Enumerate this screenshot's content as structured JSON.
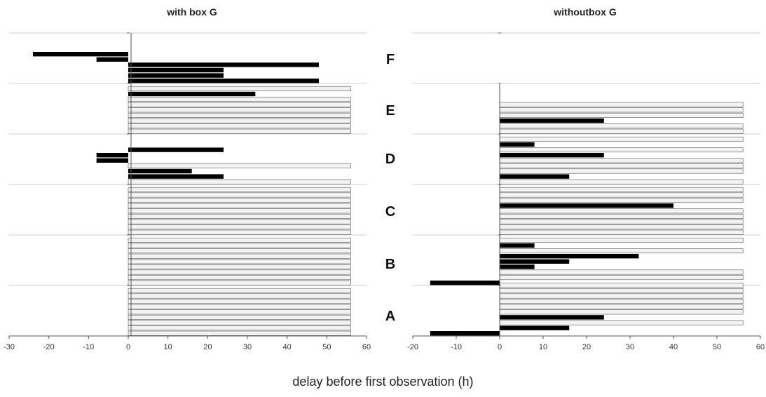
{
  "chart_data": {
    "type": "bar",
    "orientation": "horizontal",
    "xlabel": "delay before first observation (h)",
    "group_labels": [
      "F",
      "E",
      "D",
      "C",
      "B",
      "A"
    ],
    "colors": {
      "observed": "#000000",
      "not_observed": "#f2f2f2",
      "not_observed_stroke": "#555555",
      "separator": "#cccccc",
      "axis": "#555555"
    },
    "panels": [
      {
        "title": "with box G",
        "xlim": [
          -30,
          60
        ],
        "xticks": [
          -30,
          -20,
          -10,
          0,
          10,
          20,
          30,
          40,
          50,
          60
        ],
        "grid": false,
        "bars": [
          {
            "group": "F",
            "value": -24,
            "observed": true
          },
          {
            "group": "F",
            "value": -8,
            "observed": true
          },
          {
            "group": "F",
            "value": 48,
            "observed": true
          },
          {
            "group": "F",
            "value": 24,
            "observed": true
          },
          {
            "group": "F",
            "value": 24,
            "observed": true
          },
          {
            "group": "F",
            "value": 48,
            "observed": true
          },
          {
            "group": "E",
            "value": 56,
            "observed": false
          },
          {
            "group": "E",
            "value": 32,
            "observed": true
          },
          {
            "group": "E",
            "value": 56,
            "observed": false
          },
          {
            "group": "E",
            "value": 56,
            "observed": false
          },
          {
            "group": "E",
            "value": 56,
            "observed": false
          },
          {
            "group": "E",
            "value": 56,
            "observed": false
          },
          {
            "group": "E",
            "value": 56,
            "observed": false
          },
          {
            "group": "E",
            "value": 56,
            "observed": false
          },
          {
            "group": "E",
            "value": 56,
            "observed": false
          },
          {
            "group": "D",
            "value": 24,
            "observed": true
          },
          {
            "group": "D",
            "value": -8,
            "observed": true
          },
          {
            "group": "D",
            "value": -8,
            "observed": true
          },
          {
            "group": "D",
            "value": 56,
            "observed": false
          },
          {
            "group": "D",
            "value": 16,
            "observed": true
          },
          {
            "group": "D",
            "value": 24,
            "observed": true
          },
          {
            "group": "D",
            "value": 56,
            "observed": false
          },
          {
            "group": "C",
            "value": 56,
            "observed": false
          },
          {
            "group": "C",
            "value": 56,
            "observed": false
          },
          {
            "group": "C",
            "value": 56,
            "observed": false
          },
          {
            "group": "C",
            "value": 56,
            "observed": false
          },
          {
            "group": "C",
            "value": 56,
            "observed": false
          },
          {
            "group": "C",
            "value": 56,
            "observed": false
          },
          {
            "group": "C",
            "value": 56,
            "observed": false
          },
          {
            "group": "C",
            "value": 56,
            "observed": false
          },
          {
            "group": "C",
            "value": 56,
            "observed": false
          },
          {
            "group": "B",
            "value": 56,
            "observed": false
          },
          {
            "group": "B",
            "value": 56,
            "observed": false
          },
          {
            "group": "B",
            "value": 56,
            "observed": false
          },
          {
            "group": "B",
            "value": 56,
            "observed": false
          },
          {
            "group": "B",
            "value": 56,
            "observed": false
          },
          {
            "group": "B",
            "value": 56,
            "observed": false
          },
          {
            "group": "B",
            "value": 56,
            "observed": false
          },
          {
            "group": "B",
            "value": 56,
            "observed": false
          },
          {
            "group": "B",
            "value": 56,
            "observed": false
          },
          {
            "group": "A",
            "value": 56,
            "observed": false
          },
          {
            "group": "A",
            "value": 56,
            "observed": false
          },
          {
            "group": "A",
            "value": 56,
            "observed": false
          },
          {
            "group": "A",
            "value": 56,
            "observed": false
          },
          {
            "group": "A",
            "value": 56,
            "observed": false
          },
          {
            "group": "A",
            "value": 56,
            "observed": false
          },
          {
            "group": "A",
            "value": 56,
            "observed": false
          },
          {
            "group": "A",
            "value": 56,
            "observed": false
          },
          {
            "group": "A",
            "value": 56,
            "observed": false
          }
        ]
      },
      {
        "title": "withoutbox G",
        "xlim": [
          -20,
          60
        ],
        "xticks": [
          -20,
          -10,
          0,
          10,
          20,
          30,
          40,
          50,
          60
        ],
        "grid": false,
        "bars": [
          {
            "group": "E",
            "value": 56,
            "observed": false
          },
          {
            "group": "E",
            "value": 56,
            "observed": false
          },
          {
            "group": "E",
            "value": 56,
            "observed": false
          },
          {
            "group": "E",
            "value": 24,
            "observed": true
          },
          {
            "group": "E",
            "value": 56,
            "observed": false
          },
          {
            "group": "E",
            "value": 56,
            "observed": false
          },
          {
            "group": "D",
            "value": 56,
            "observed": false
          },
          {
            "group": "D",
            "value": 8,
            "observed": true
          },
          {
            "group": "D",
            "value": 56,
            "observed": false
          },
          {
            "group": "D",
            "value": 24,
            "observed": true
          },
          {
            "group": "D",
            "value": 56,
            "observed": false
          },
          {
            "group": "D",
            "value": 56,
            "observed": false
          },
          {
            "group": "D",
            "value": 56,
            "observed": false
          },
          {
            "group": "D",
            "value": 16,
            "observed": true
          },
          {
            "group": "D",
            "value": 56,
            "observed": false
          },
          {
            "group": "C",
            "value": 56,
            "observed": false
          },
          {
            "group": "C",
            "value": 56,
            "observed": false
          },
          {
            "group": "C",
            "value": 56,
            "observed": false
          },
          {
            "group": "C",
            "value": 40,
            "observed": true
          },
          {
            "group": "C",
            "value": 56,
            "observed": false
          },
          {
            "group": "C",
            "value": 56,
            "observed": false
          },
          {
            "group": "C",
            "value": 56,
            "observed": false
          },
          {
            "group": "C",
            "value": 56,
            "observed": false
          },
          {
            "group": "C",
            "value": 56,
            "observed": false
          },
          {
            "group": "B",
            "value": 56,
            "observed": false
          },
          {
            "group": "B",
            "value": 8,
            "observed": true
          },
          {
            "group": "B",
            "value": 56,
            "observed": false
          },
          {
            "group": "B",
            "value": 32,
            "observed": true
          },
          {
            "group": "B",
            "value": 16,
            "observed": true
          },
          {
            "group": "B",
            "value": 8,
            "observed": true
          },
          {
            "group": "B",
            "value": 56,
            "observed": false
          },
          {
            "group": "B",
            "value": 56,
            "observed": false
          },
          {
            "group": "B",
            "value": -16,
            "observed": true
          },
          {
            "group": "A",
            "value": 56,
            "observed": false
          },
          {
            "group": "A",
            "value": 56,
            "observed": false
          },
          {
            "group": "A",
            "value": 56,
            "observed": false
          },
          {
            "group": "A",
            "value": 56,
            "observed": false
          },
          {
            "group": "A",
            "value": 56,
            "observed": false
          },
          {
            "group": "A",
            "value": 56,
            "observed": false
          },
          {
            "group": "A",
            "value": 24,
            "observed": true
          },
          {
            "group": "A",
            "value": 56,
            "observed": false
          },
          {
            "group": "A",
            "value": 16,
            "observed": true
          },
          {
            "group": "A",
            "value": -16,
            "observed": true
          }
        ]
      }
    ]
  }
}
